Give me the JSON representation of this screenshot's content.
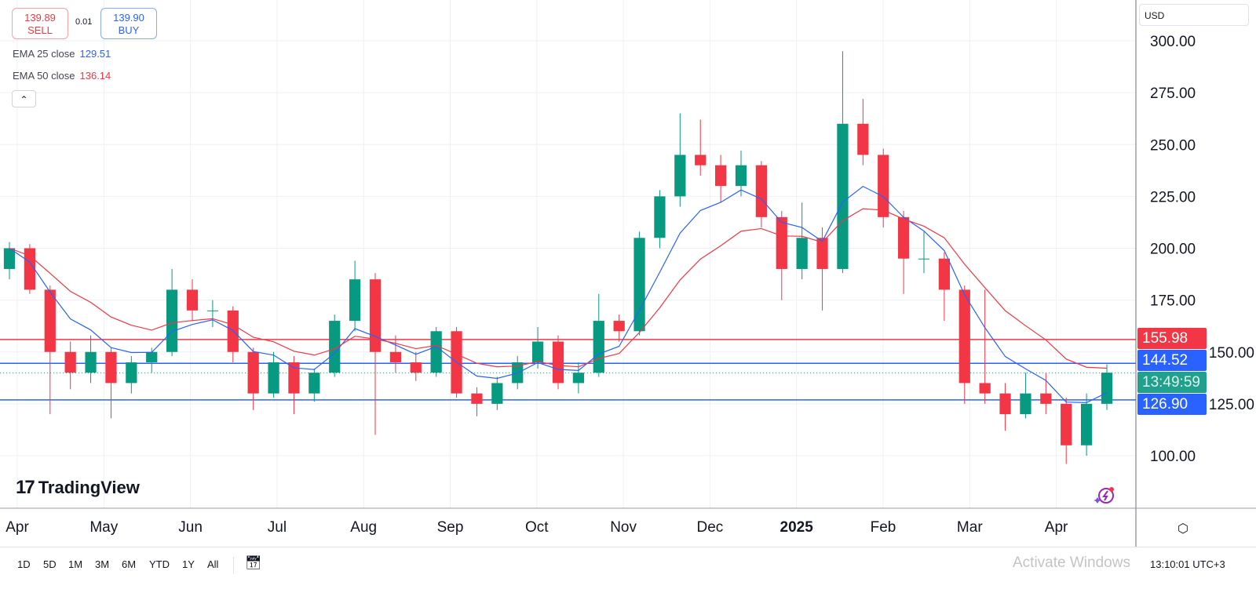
{
  "trade": {
    "sell_price": "139.89",
    "sell_label": "SELL",
    "spread": "0.01",
    "buy_price": "139.90",
    "buy_label": "BUY"
  },
  "legend": [
    {
      "name": "EMA 25 close",
      "value": "129.51",
      "color": "#2962ff",
      "period": 25
    },
    {
      "name": "EMA 50 close",
      "value": "136.14",
      "color": "#f23645",
      "period": 50
    }
  ],
  "currency": "USD",
  "price_labels": {
    "red_line": "155.98",
    "blue_line_upper": "144.52",
    "countdown": "13:49:59",
    "blue_line_lower": "126.90"
  },
  "colors": {
    "up": "#089981",
    "down": "#f23645",
    "ema25": "#2962ff",
    "ema50": "#f23645"
  },
  "brand": "TradingView",
  "ranges": [
    "1D",
    "5D",
    "1M",
    "3M",
    "6M",
    "YTD",
    "1Y",
    "All"
  ],
  "clock": "13:10:01 UTC+3",
  "watermark": "Activate Windows",
  "chart_data": {
    "type": "candlestick",
    "ylim": [
      90,
      305
    ],
    "y_ticks": [
      "100.00",
      "125.00",
      "150.00",
      "175.00",
      "200.00",
      "225.00",
      "250.00",
      "275.00",
      "300.00"
    ],
    "x_labels": [
      "Apr",
      "May",
      "Jun",
      "Jul",
      "Aug",
      "Sep",
      "Oct",
      "Nov",
      "Dec",
      "2025",
      "Feb",
      "Mar",
      "Apr"
    ],
    "hlines": [
      {
        "value": 155.98,
        "color": "#f23645"
      },
      {
        "value": 144.52,
        "color": "#2962ff"
      },
      {
        "value": 126.9,
        "color": "#2962ff"
      },
      {
        "value": 139.89,
        "color": "#22a08e",
        "dotted": true
      }
    ],
    "ohlc": [
      [
        190,
        203,
        185,
        200
      ],
      [
        200,
        202,
        178,
        180
      ],
      [
        180,
        182,
        120,
        150
      ],
      [
        150,
        155,
        132,
        140
      ],
      [
        140,
        158,
        135,
        150
      ],
      [
        150,
        152,
        118,
        135
      ],
      [
        135,
        148,
        130,
        145
      ],
      [
        145,
        152,
        140,
        150
      ],
      [
        150,
        190,
        148,
        180
      ],
      [
        180,
        185,
        165,
        170
      ],
      [
        170,
        175,
        162,
        170
      ],
      [
        170,
        172,
        145,
        150
      ],
      [
        150,
        152,
        122,
        130
      ],
      [
        130,
        150,
        128,
        145
      ],
      [
        145,
        148,
        120,
        130
      ],
      [
        130,
        142,
        126,
        140
      ],
      [
        140,
        168,
        138,
        165
      ],
      [
        165,
        194,
        160,
        185
      ],
      [
        185,
        188,
        110,
        150
      ],
      [
        150,
        158,
        140,
        145
      ],
      [
        145,
        150,
        136,
        140
      ],
      [
        140,
        162,
        138,
        160
      ],
      [
        160,
        162,
        128,
        130
      ],
      [
        130,
        133,
        119,
        125
      ],
      [
        125,
        138,
        122,
        135
      ],
      [
        135,
        148,
        132,
        145
      ],
      [
        145,
        162,
        142,
        155
      ],
      [
        155,
        158,
        132,
        135
      ],
      [
        135,
        145,
        130,
        140
      ],
      [
        140,
        178,
        138,
        165
      ],
      [
        165,
        168,
        155,
        160
      ],
      [
        160,
        208,
        158,
        205
      ],
      [
        205,
        228,
        200,
        225
      ],
      [
        225,
        265,
        220,
        245
      ],
      [
        245,
        262,
        235,
        240
      ],
      [
        240,
        245,
        222,
        230
      ],
      [
        230,
        247,
        225,
        240
      ],
      [
        240,
        242,
        210,
        215
      ],
      [
        215,
        218,
        175,
        190
      ],
      [
        190,
        222,
        185,
        205
      ],
      [
        205,
        210,
        170,
        190
      ],
      [
        190,
        295,
        188,
        260
      ],
      [
        260,
        272,
        240,
        245
      ],
      [
        245,
        248,
        210,
        215
      ],
      [
        215,
        218,
        178,
        195
      ],
      [
        195,
        208,
        188,
        195
      ],
      [
        195,
        198,
        165,
        180
      ],
      [
        180,
        182,
        125,
        135
      ],
      [
        135,
        180,
        125,
        130
      ],
      [
        130,
        135,
        112,
        120
      ],
      [
        120,
        140,
        118,
        130
      ],
      [
        130,
        140,
        120,
        125
      ],
      [
        125,
        128,
        96,
        105
      ],
      [
        105,
        130,
        100,
        125
      ],
      [
        125,
        144,
        122,
        140
      ]
    ]
  }
}
